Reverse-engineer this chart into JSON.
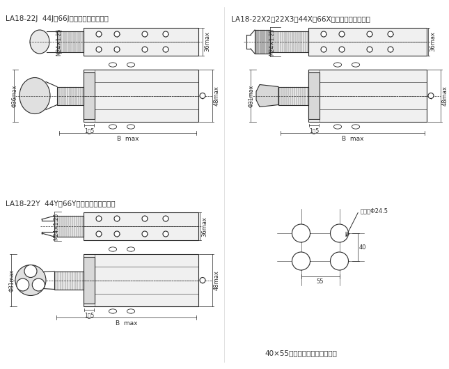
{
  "title_J": "LA18-22J  44J、66J按鈕外形与安装尺寸",
  "title_X": "LA18-22X2、22X3、44X、66X按鈕外形与安装尺寸",
  "title_Y": "LA18-22Y  44Y、66Y按鈕外形与安装尺寸",
  "bottom_text": "40×55为并排安装时最小中心距",
  "ann_hole": "安装孔Φ24.5",
  "dim_36max": "36max",
  "dim_48max": "48max",
  "dim_1_5": "1～5",
  "dim_B": "B  max",
  "dim_M24": "M24×1.25",
  "dim_phi36": "Φ36max",
  "dim_phi31": "Φ31max",
  "dim_40": "40",
  "dim_55": "55",
  "bg_color": "#ffffff",
  "line_color": "#2a2a2a",
  "line_width": 0.8
}
